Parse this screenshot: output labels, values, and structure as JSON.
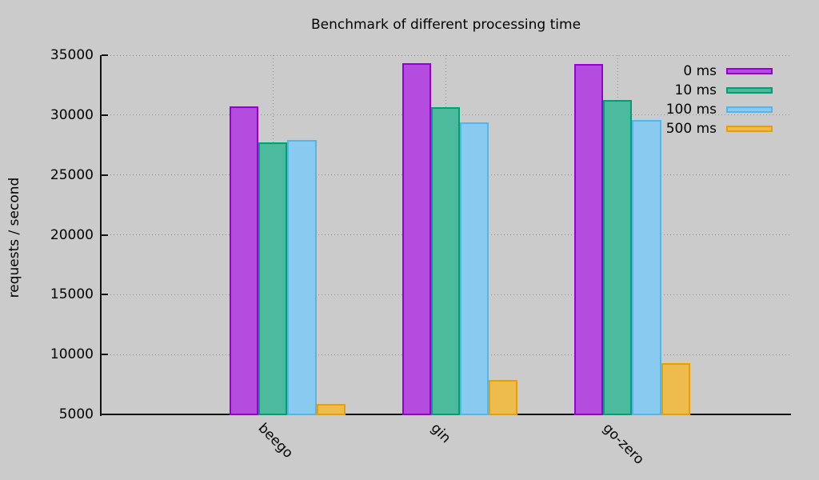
{
  "title": "Benchmark of different processing time",
  "chart_data": {
    "type": "bar",
    "title": "Benchmark of different processing time",
    "xlabel": "",
    "ylabel": "requests / second",
    "categories": [
      "beego",
      "gin",
      "go-zero"
    ],
    "series": [
      {
        "name": "0 ms",
        "fill": "#b44ce0",
        "border": "#9400d3",
        "values": [
          30700,
          34300,
          34250
        ]
      },
      {
        "name": "10 ms",
        "fill": "#4cbb9d",
        "border": "#009e73",
        "values": [
          27750,
          30650,
          31250
        ]
      },
      {
        "name": "100 ms",
        "fill": "#89caf0",
        "border": "#56b4e9",
        "values": [
          27900,
          29400,
          29600
        ]
      },
      {
        "name": "500 ms",
        "fill": "#edbc4c",
        "border": "#e69f00",
        "values": [
          5850,
          7900,
          9250
        ]
      }
    ],
    "ylim": [
      5000,
      35000
    ],
    "yticks": [
      5000,
      10000,
      15000,
      20000,
      25000,
      30000,
      35000
    ],
    "grid": true,
    "legend_position": "top-right-inside"
  },
  "colors": {
    "background": "#cbcbcb",
    "axis": "#111111",
    "grid": "#949494",
    "text": "#000000"
  }
}
